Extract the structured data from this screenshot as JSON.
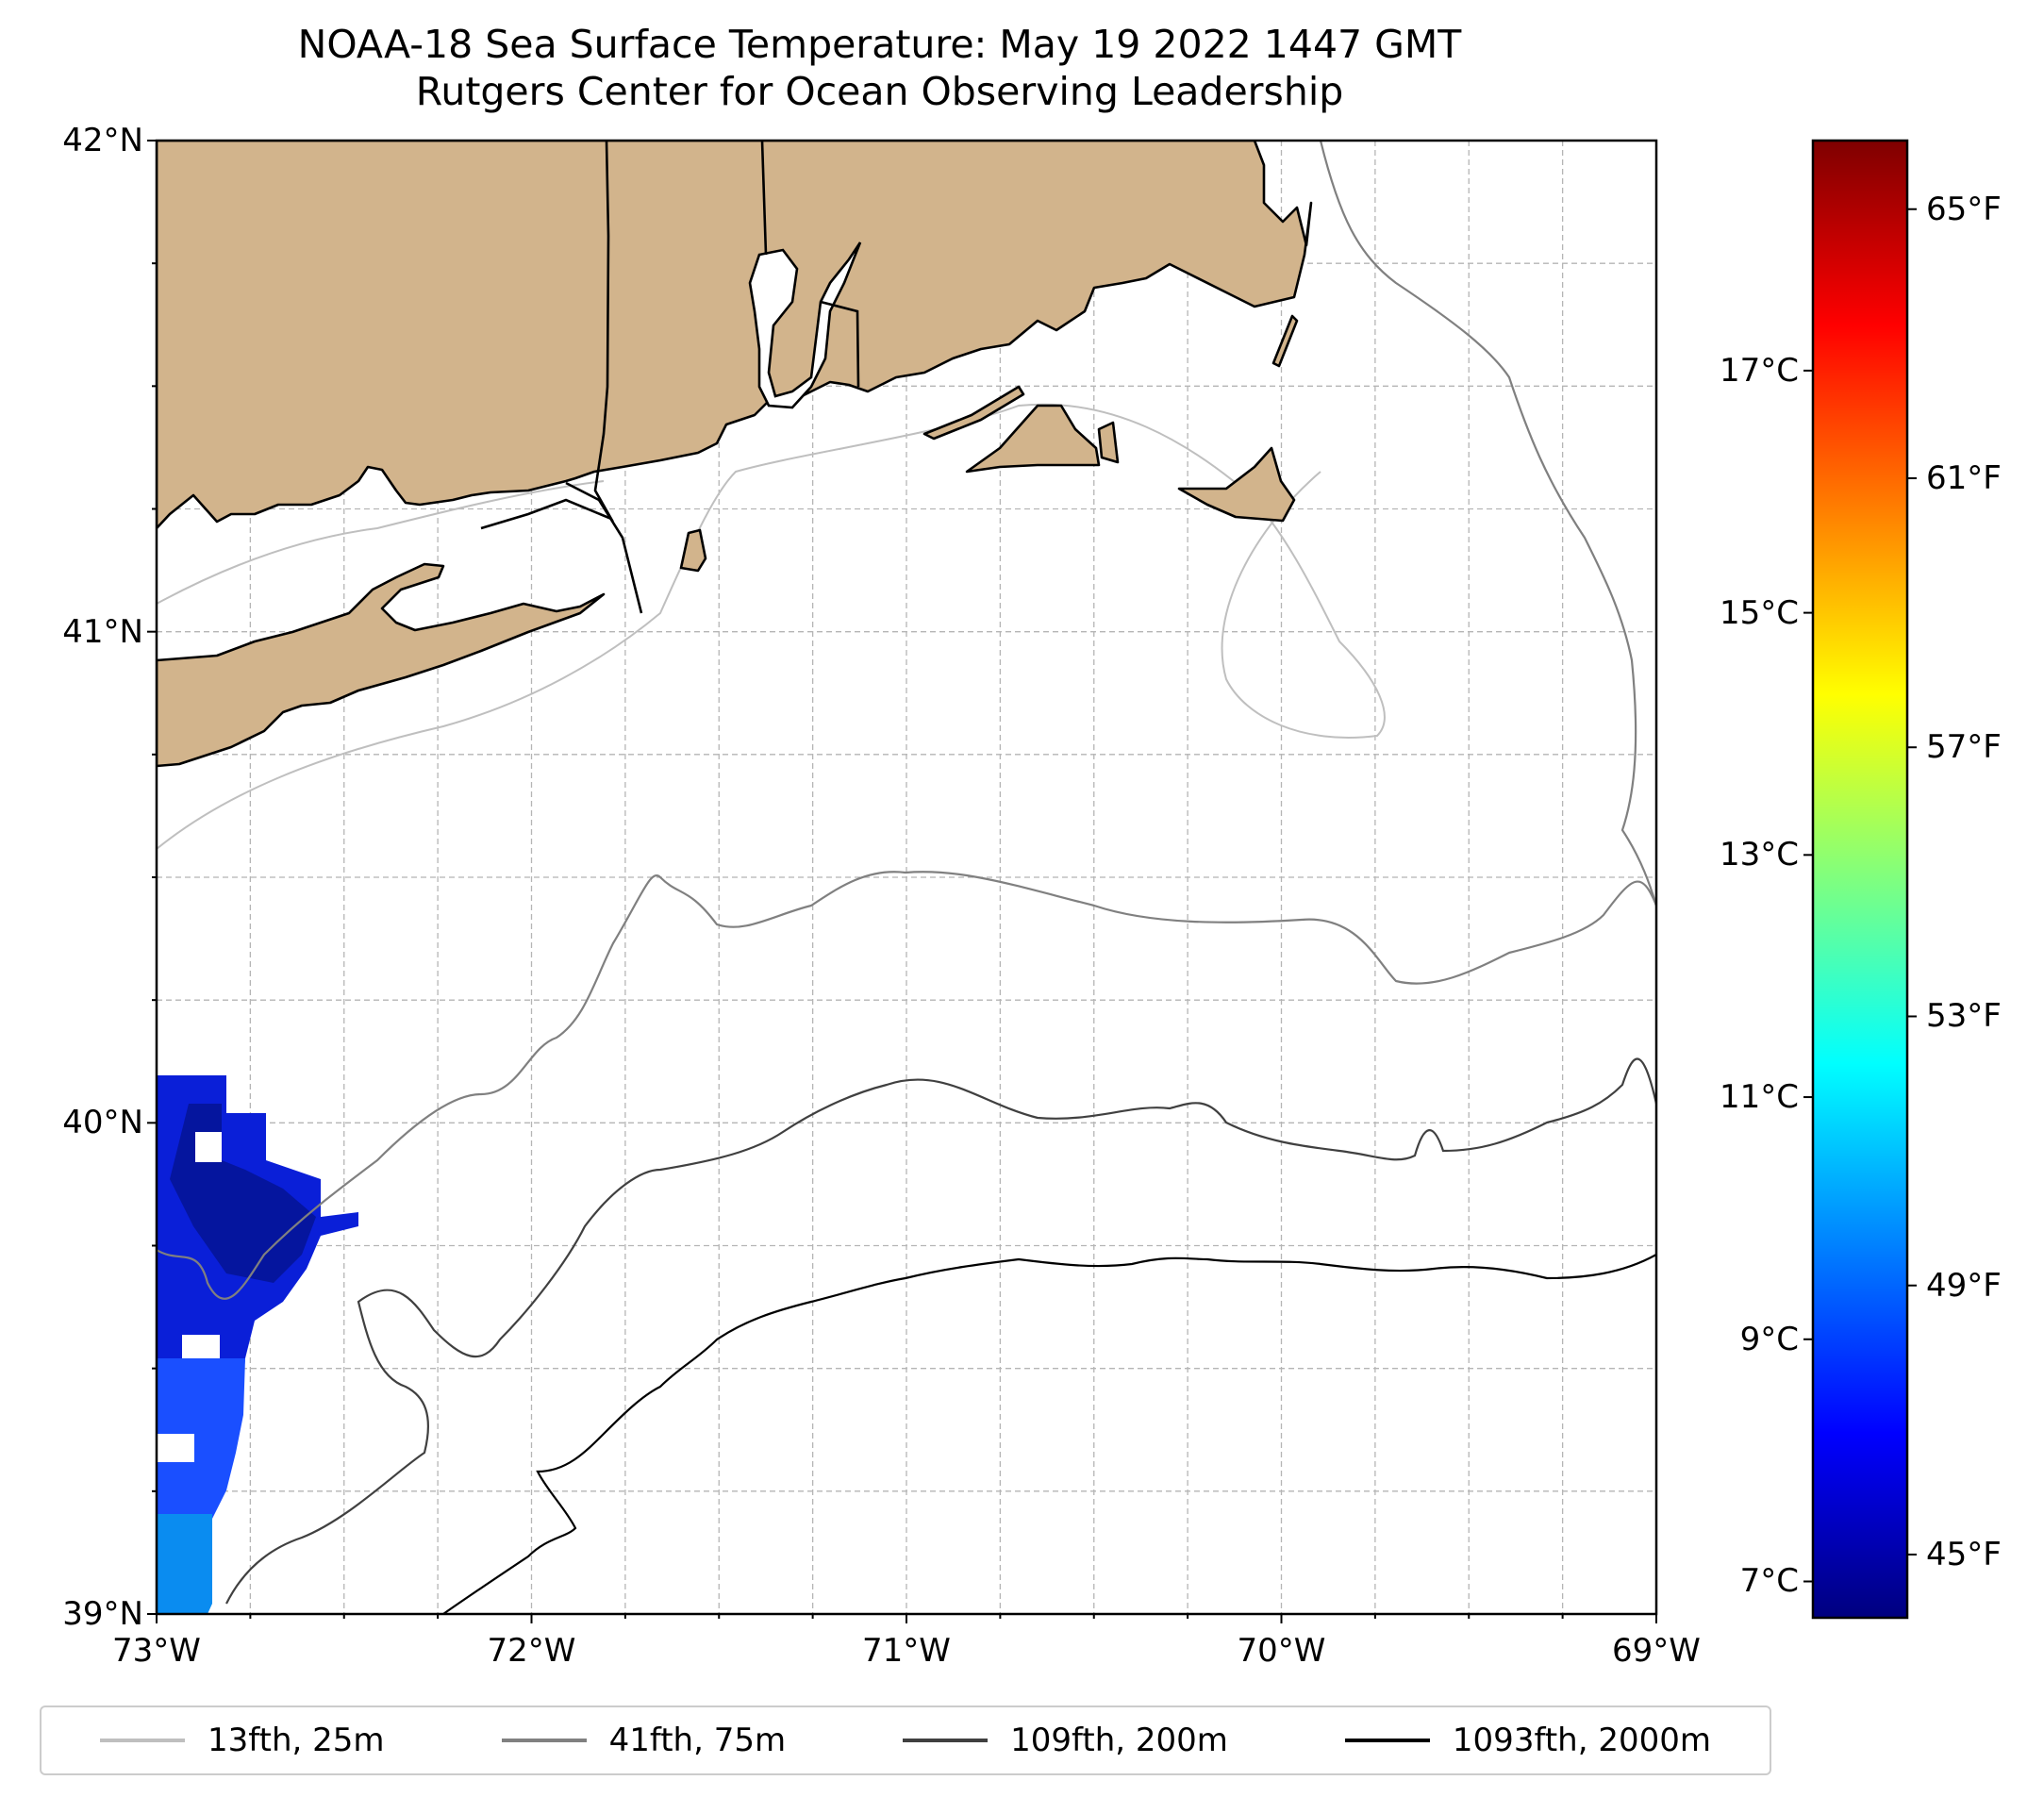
{
  "title": {
    "line1": "NOAA-18 Sea Surface Temperature: May 19 2022 1447 GMT",
    "line2": "Rutgers Center for Ocean Observing Leadership"
  },
  "map": {
    "lon_range": [
      -73,
      -69
    ],
    "lat_range": [
      39,
      42
    ],
    "lon_ticks": [
      {
        "value": -73,
        "label": "73°W"
      },
      {
        "value": -72,
        "label": "72°W"
      },
      {
        "value": -71,
        "label": "71°W"
      },
      {
        "value": -70,
        "label": "70°W"
      },
      {
        "value": -69,
        "label": "69°W"
      }
    ],
    "lat_ticks": [
      {
        "value": 39,
        "label": "39°N"
      },
      {
        "value": 40,
        "label": "40°N"
      },
      {
        "value": 41,
        "label": "41°N"
      },
      {
        "value": 42,
        "label": "42°N"
      }
    ],
    "grid": true,
    "land_color": "#d2b48c"
  },
  "colorbar": {
    "range_c": [
      6.7,
      18.9
    ],
    "c_ticks": [
      {
        "value": 7,
        "label": "7°C"
      },
      {
        "value": 9,
        "label": "9°C"
      },
      {
        "value": 11,
        "label": "11°C"
      },
      {
        "value": 13,
        "label": "13°C"
      },
      {
        "value": 15,
        "label": "15°C"
      },
      {
        "value": 17,
        "label": "17°C"
      }
    ],
    "f_ticks": [
      {
        "value": 45,
        "label": "45°F"
      },
      {
        "value": 49,
        "label": "49°F"
      },
      {
        "value": 53,
        "label": "53°F"
      },
      {
        "value": 57,
        "label": "57°F"
      },
      {
        "value": 61,
        "label": "61°F"
      },
      {
        "value": 65,
        "label": "65°F"
      }
    ],
    "colors": [
      "#00007f",
      "#0000ff",
      "#007fff",
      "#00ffff",
      "#7fff7f",
      "#ffff00",
      "#ff7f00",
      "#ff0000",
      "#7f0000"
    ]
  },
  "legend": {
    "items": [
      {
        "label": "13fth, 25m",
        "color": "#bfbfbf"
      },
      {
        "label": "41fth, 75m",
        "color": "#808080"
      },
      {
        "label": "109fth, 200m",
        "color": "#404040"
      },
      {
        "label": "1093fth, 2000m",
        "color": "#000000"
      }
    ]
  }
}
